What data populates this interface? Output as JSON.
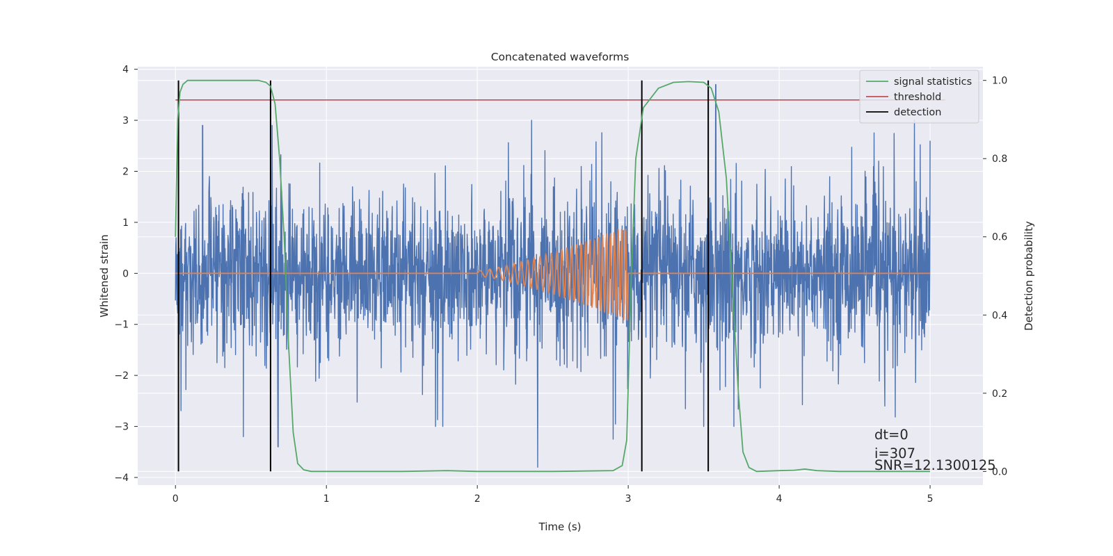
{
  "chart_data": {
    "type": "line",
    "title": "Concatenated waveforms",
    "xlabel": "Time (s)",
    "ylabel": "Whitened strain",
    "y2label": "Detection probability",
    "xlim": [
      -0.25,
      5.35
    ],
    "ylim": [
      -4.15,
      4.05
    ],
    "y2lim": [
      -0.035,
      1.035
    ],
    "x_ticks": [
      0,
      1,
      2,
      3,
      4,
      5
    ],
    "y_ticks": [
      -4,
      -3,
      -2,
      -1,
      0,
      1,
      2,
      3,
      4
    ],
    "y2_ticks": [
      0.0,
      0.2,
      0.4,
      0.6,
      0.8,
      1.0
    ],
    "x_tick_labels": [
      "0",
      "1",
      "2",
      "3",
      "4",
      "5"
    ],
    "y_tick_labels": [
      "−4",
      "−3",
      "−2",
      "−1",
      "0",
      "1",
      "2",
      "3",
      "4"
    ],
    "y2_tick_labels": [
      "0.0",
      "0.2",
      "0.4",
      "0.6",
      "0.8",
      "1.0"
    ],
    "grid": true,
    "legend_position": "top-right",
    "colors": {
      "background": "#eaeaf2",
      "grid": "#ffffff",
      "strain": "#4c72b0",
      "template": "#dd8452",
      "signal_statistics": "#55a868",
      "threshold": "#c44e52",
      "detection": "#000000"
    },
    "series": [
      {
        "name": "strain",
        "axis": "left",
        "x_range": [
          0,
          5
        ],
        "envelope_typical": [
          -1.5,
          1.5
        ],
        "peaks": [
          {
            "x": 0.18,
            "y": 2.9
          },
          {
            "x": 0.45,
            "y": -3.2
          },
          {
            "x": 0.64,
            "y": 2.9
          },
          {
            "x": 0.68,
            "y": -3.4
          },
          {
            "x": 2.4,
            "y": -3.8
          },
          {
            "x": 2.9,
            "y": -3.25
          },
          {
            "x": 3.58,
            "y": 3.7
          },
          {
            "x": 3.7,
            "y": -3.0
          },
          {
            "x": 4.7,
            "y": -2.6
          },
          {
            "x": 5.0,
            "y": 2.6
          }
        ]
      },
      {
        "name": "template",
        "axis": "left",
        "x_range": [
          0,
          5
        ],
        "chirp_start": 2.0,
        "chirp_end": 3.0,
        "amplitude_start": 0.05,
        "amplitude_end": 0.95
      },
      {
        "name": "signal statistics",
        "axis": "right",
        "points": [
          [
            0.0,
            0.6
          ],
          [
            0.015,
            0.9
          ],
          [
            0.03,
            0.97
          ],
          [
            0.05,
            0.99
          ],
          [
            0.08,
            1.0
          ],
          [
            0.3,
            1.0
          ],
          [
            0.55,
            1.0
          ],
          [
            0.6,
            0.995
          ],
          [
            0.63,
            0.985
          ],
          [
            0.66,
            0.94
          ],
          [
            0.69,
            0.8
          ],
          [
            0.72,
            0.6
          ],
          [
            0.75,
            0.32
          ],
          [
            0.78,
            0.1
          ],
          [
            0.81,
            0.02
          ],
          [
            0.85,
            0.004
          ],
          [
            0.9,
            0.0
          ],
          [
            1.5,
            0.0
          ],
          [
            1.8,
            0.002
          ],
          [
            2.0,
            0.0
          ],
          [
            2.5,
            0.0
          ],
          [
            2.9,
            0.002
          ],
          [
            2.96,
            0.015
          ],
          [
            2.99,
            0.08
          ],
          [
            3.02,
            0.5
          ],
          [
            3.05,
            0.8
          ],
          [
            3.1,
            0.93
          ],
          [
            3.2,
            0.98
          ],
          [
            3.3,
            0.995
          ],
          [
            3.4,
            0.997
          ],
          [
            3.5,
            0.995
          ],
          [
            3.55,
            0.98
          ],
          [
            3.6,
            0.92
          ],
          [
            3.65,
            0.75
          ],
          [
            3.7,
            0.4
          ],
          [
            3.73,
            0.2
          ],
          [
            3.76,
            0.05
          ],
          [
            3.8,
            0.01
          ],
          [
            3.85,
            0.0
          ],
          [
            4.0,
            0.002
          ],
          [
            4.1,
            0.003
          ],
          [
            4.17,
            0.006
          ],
          [
            4.25,
            0.002
          ],
          [
            4.4,
            0.0
          ],
          [
            5.0,
            0.0
          ]
        ]
      },
      {
        "name": "threshold",
        "axis": "right",
        "value": 0.95,
        "x_range": [
          0,
          5.1
        ]
      },
      {
        "name": "detection",
        "axis": "right",
        "x": [
          0.02,
          0.63,
          3.09,
          3.53
        ],
        "y_range": [
          0.0,
          1.0
        ]
      }
    ],
    "annotations": [
      "dt=0",
      "i=307",
      "SNR=12.1300125"
    ]
  }
}
